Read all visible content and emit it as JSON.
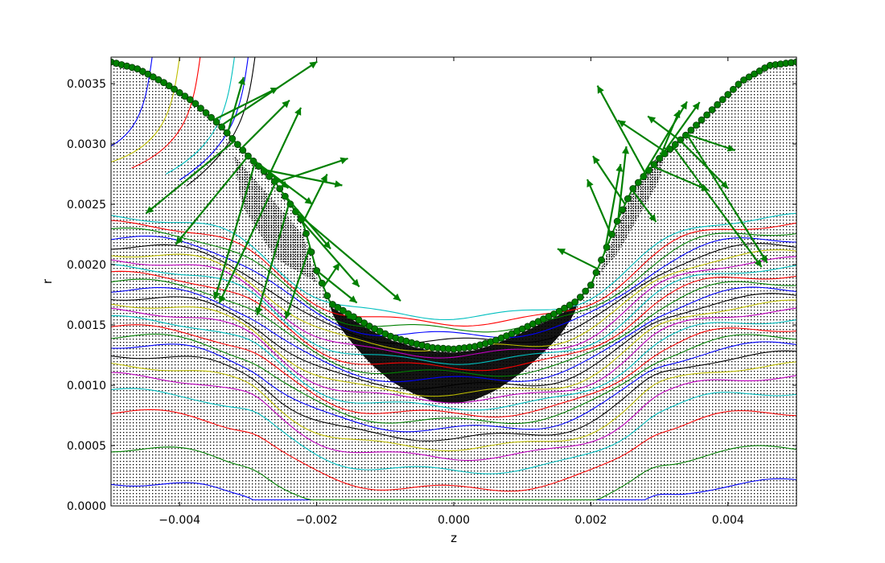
{
  "chart_data": {
    "type": "line",
    "title": "",
    "xlabel": "z",
    "ylabel": "r",
    "xlim": [
      -0.005,
      0.005
    ],
    "ylim": [
      0.0,
      0.00372
    ],
    "x_ticks": [
      -0.004,
      -0.002,
      0.0,
      0.002,
      0.004
    ],
    "x_tick_labels": [
      "−0.004",
      "−0.002",
      "0.000",
      "0.002",
      "0.004"
    ],
    "y_ticks": [
      0.0,
      0.0005,
      0.001,
      0.0015,
      0.002,
      0.0025,
      0.003,
      0.0035
    ],
    "y_tick_labels": [
      "0.0000",
      "0.0005",
      "0.0010",
      "0.0015",
      "0.0020",
      "0.0025",
      "0.0030",
      "0.0035"
    ],
    "grid": false,
    "legend": "none",
    "colors": {
      "contour_cycle": [
        "#0000ff",
        "#008000",
        "#ff0000",
        "#00bfbf",
        "#bf00bf",
        "#bfbf00",
        "#000000"
      ],
      "free_surface": "#008000",
      "velocity_arrows": "#008000",
      "mesh_points": "#000000"
    },
    "free_surface": {
      "name": "free surface",
      "x": [
        -0.005,
        -0.0046,
        -0.0042,
        -0.0038,
        -0.0034,
        -0.003,
        -0.0026,
        -0.0022,
        -0.002,
        -0.0018,
        -0.0015,
        -0.0012,
        -0.0009,
        -0.0006,
        -0.0003,
        0.0,
        0.0003,
        0.0006,
        0.0009,
        0.0012,
        0.0015,
        0.0018,
        0.002,
        0.0022,
        0.0024,
        0.0026,
        0.003,
        0.0034,
        0.0038,
        0.0042,
        0.0046,
        0.005
      ],
      "y": [
        0.00368,
        0.00362,
        0.0035,
        0.00335,
        0.00315,
        0.0029,
        0.00268,
        0.00235,
        0.00195,
        0.00168,
        0.00158,
        0.00148,
        0.0014,
        0.00135,
        0.00131,
        0.0013,
        0.00132,
        0.00137,
        0.00144,
        0.00152,
        0.0016,
        0.0017,
        0.00183,
        0.0021,
        0.00238,
        0.00262,
        0.00288,
        0.00308,
        0.0033,
        0.00352,
        0.00365,
        0.00368
      ]
    },
    "contour_levels_r0": [
      0.0002,
      0.00048,
      0.00078,
      0.00095,
      0.00108,
      0.00117,
      0.00126,
      0.00134,
      0.00141,
      0.00148,
      0.00155,
      0.00162,
      0.00168,
      0.00174,
      0.0018,
      0.00186,
      0.00192,
      0.00198,
      0.00204,
      0.0021,
      0.00216,
      0.00222,
      0.00228,
      0.00234,
      0.0024
    ]
  }
}
